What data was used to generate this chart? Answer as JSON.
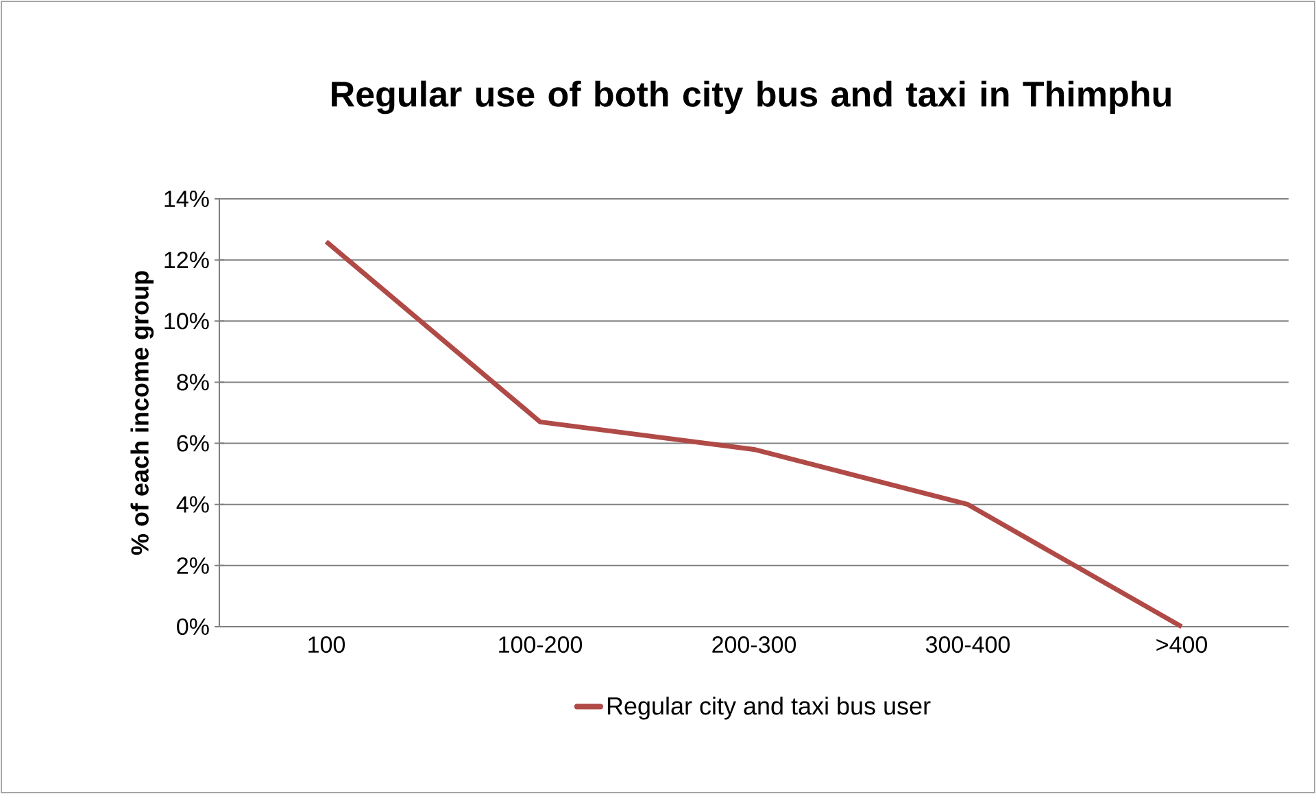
{
  "chart_data": {
    "type": "line",
    "title": "Regular use of both city bus and taxi in Thimphu",
    "ylabel": "% of each income group",
    "categories": [
      "100",
      "100-200",
      "200-300",
      "300-400",
      ">400"
    ],
    "series": [
      {
        "name": "Regular city and taxi bus user",
        "color": "#b04a47",
        "values": [
          12.6,
          6.7,
          5.8,
          4.0,
          0
        ]
      }
    ],
    "ylim": [
      0,
      14
    ],
    "yticks": [
      {
        "value": 0,
        "label": "0%"
      },
      {
        "value": 2,
        "label": "2%"
      },
      {
        "value": 4,
        "label": "4%"
      },
      {
        "value": 6,
        "label": "6%"
      },
      {
        "value": 8,
        "label": "8%"
      },
      {
        "value": 10,
        "label": "10%"
      },
      {
        "value": 12,
        "label": "12%"
      },
      {
        "value": 14,
        "label": "14%"
      }
    ],
    "grid": "y",
    "legend": "bottom",
    "marker": "none",
    "line_style": "solid"
  }
}
